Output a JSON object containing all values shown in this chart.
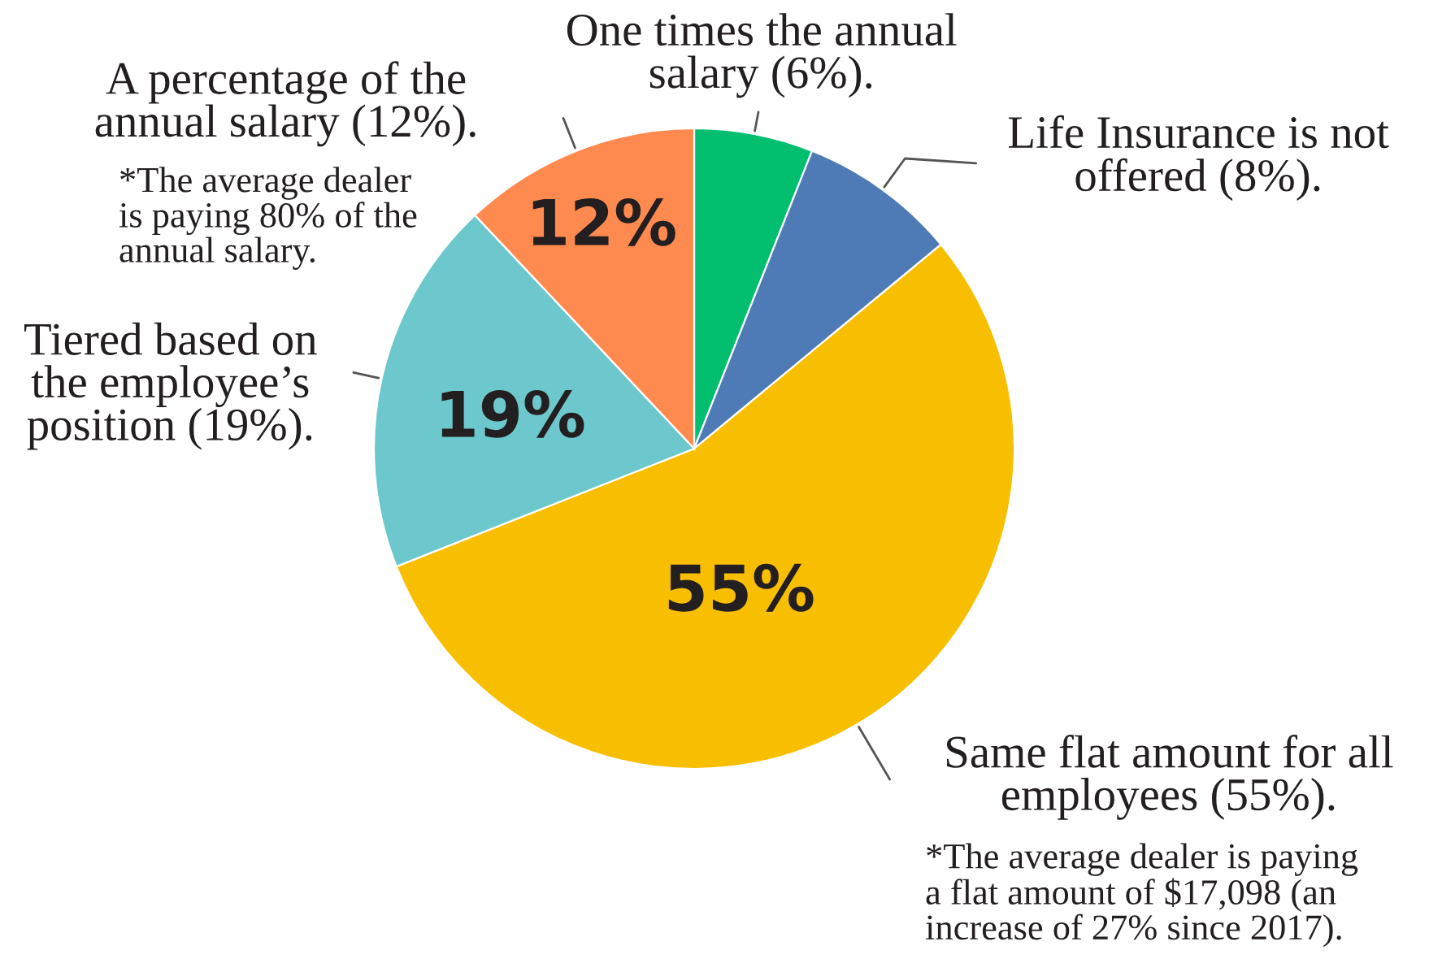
{
  "chart_data": {
    "type": "pie",
    "categories": [
      "One times the annual\nsalary (6%).",
      "Life Insurance is not\noffered (8%).",
      "Same flat amount for all\nemployees (55%).",
      "Tiered based on\nthe employee’s\nposition (19%).",
      "A percentage of the\nannual salary (12%)."
    ],
    "values": [
      6,
      8,
      55,
      19,
      12
    ],
    "colors": [
      "#02bf6f",
      "#4e7bb6",
      "#f8be00",
      "#6cc8cc",
      "#fe8a4f"
    ],
    "value_labels": [
      null,
      null,
      "55%",
      "19%",
      "12%"
    ],
    "annotations": [
      "*The average dealer\nis paying 80% of the\nannual salary.",
      "*The average dealer is paying\na flat amount of $17,098 (an\nincrease of 27% since 2017)."
    ]
  }
}
